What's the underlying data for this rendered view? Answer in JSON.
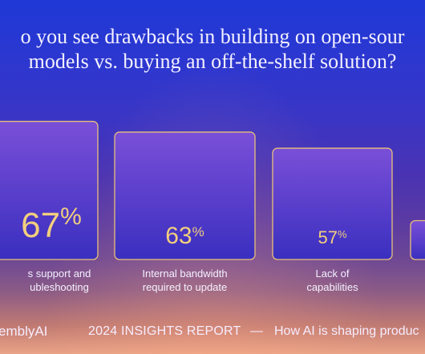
{
  "chart_data": {
    "type": "bar",
    "title": "o you see drawbacks in building on open-sour models vs. buying an off-the-shelf solution?",
    "title_lines": [
      "o you see drawbacks in building on open-sour",
      "models vs. buying an off-the-shelf solution?"
    ],
    "categories": [
      "s support and ubleshooting",
      "Internal bandwidth required to update",
      "Lack of capabilities",
      ""
    ],
    "category_lines": [
      [
        "s support and",
        "ubleshooting"
      ],
      [
        "Internal bandwidth",
        "required to update"
      ],
      [
        "Lack of",
        "capabilities"
      ],
      []
    ],
    "values": [
      67,
      63,
      57,
      null
    ],
    "value_labels": [
      {
        "num": "67",
        "unit": "%"
      },
      {
        "num": "63",
        "unit": "%"
      },
      {
        "num": "57",
        "unit": "%"
      },
      {
        "num": "",
        "unit": ""
      }
    ],
    "unit": "%",
    "grid": false,
    "legend": "none",
    "colors": {
      "bar_fill_top": "#7a4fd8",
      "bar_fill_bottom": "#3a2fbf",
      "bar_border": "#e8c07a",
      "value_text": "#f2cf7e",
      "label_text": "#f4f1ff"
    }
  },
  "footer": {
    "brand": "emblyAI",
    "report": "2024 INSIGHTS REPORT",
    "separator": "—",
    "tagline": "How AI is shaping produc"
  }
}
